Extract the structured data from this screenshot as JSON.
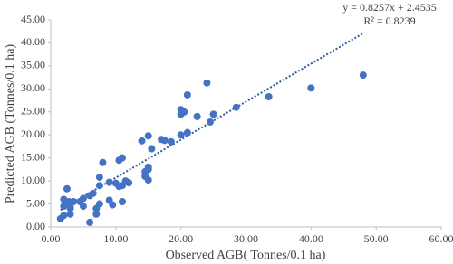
{
  "chart_data": {
    "type": "scatter",
    "x_label": "Observed AGB( Tonnes/0.1 ha)",
    "y_label": "Predicted AGB (Tonnes/0.1 ha)",
    "color": "#4472c4",
    "x": [
      1.5,
      2,
      2,
      2,
      2.5,
      2.8,
      3,
      3,
      3.5,
      3,
      4.5,
      5,
      5,
      6,
      6,
      6.5,
      7,
      7,
      7.5,
      7.5,
      7.5,
      8,
      9,
      9,
      9.5,
      10,
      10.5,
      10.5,
      11,
      11,
      11,
      11.5,
      12,
      14,
      14.5,
      14.5,
      15,
      15,
      15,
      15,
      15.5,
      17,
      17.5,
      18.5,
      20,
      20,
      20,
      20.5,
      21,
      21,
      22.5,
      24,
      24.5,
      25,
      28.5,
      33.5,
      40,
      48
    ],
    "y": [
      1.8,
      2.5,
      4.5,
      6,
      8.3,
      5.5,
      2.8,
      4.3,
      5.5,
      4,
      5.5,
      4.5,
      6.2,
      6.8,
      1,
      7.3,
      4,
      2.8,
      5,
      9,
      10.8,
      14,
      5.8,
      9.7,
      4.8,
      9.5,
      14.5,
      8.8,
      15,
      9,
      5.5,
      10,
      9.6,
      18.7,
      11,
      12,
      13,
      12.5,
      10.2,
      19.8,
      17,
      19,
      18.8,
      18.5,
      20,
      24.5,
      25.5,
      25,
      28.7,
      20.5,
      24,
      31.3,
      22.8,
      24.5,
      26,
      28.3,
      30.2,
      33
    ],
    "trendline": {
      "equation": "y = 0.8257x + 2.4535",
      "r2": "R² = 0.8239",
      "slope": 0.8257,
      "intercept": 2.4535,
      "color": "#2e5c9e"
    },
    "xlim": [
      0,
      60
    ],
    "xticks": [
      {
        "value": 0,
        "label": "0.00"
      },
      {
        "value": 10,
        "label": "10.00"
      },
      {
        "value": 20,
        "label": "20.00"
      },
      {
        "value": 30,
        "label": "30.00"
      },
      {
        "value": 40,
        "label": "40.00"
      },
      {
        "value": 50,
        "label": "50.00"
      },
      {
        "value": 60,
        "label": "60.00"
      }
    ],
    "ylim": [
      0,
      45
    ],
    "yticks": [
      {
        "value": 0,
        "label": "0.00"
      },
      {
        "value": 5,
        "label": "5.00"
      },
      {
        "value": 10,
        "label": "10.00"
      },
      {
        "value": 15,
        "label": "15.00"
      },
      {
        "value": 20,
        "label": "20.00"
      },
      {
        "value": 25,
        "label": "25.00"
      },
      {
        "value": 30,
        "label": "30.00"
      },
      {
        "value": 35,
        "label": "35.00"
      },
      {
        "value": 40,
        "label": "40.00"
      },
      {
        "value": 45,
        "label": "45.00"
      }
    ],
    "grid": false
  }
}
